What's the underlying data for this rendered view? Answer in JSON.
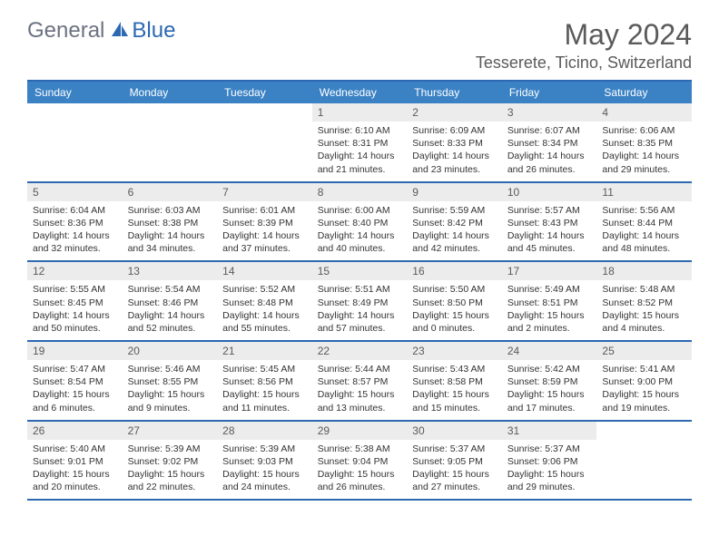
{
  "brand": {
    "part1": "General",
    "part2": "Blue"
  },
  "title": "May 2024",
  "location": "Tesserete, Ticino, Switzerland",
  "colors": {
    "header_bg": "#3b82c4",
    "border": "#2d68b2",
    "daynum_bg": "#ececec",
    "text_gray": "#5a5a5a"
  },
  "day_names": [
    "Sunday",
    "Monday",
    "Tuesday",
    "Wednesday",
    "Thursday",
    "Friday",
    "Saturday"
  ],
  "weeks": [
    [
      {
        "blank": true
      },
      {
        "blank": true
      },
      {
        "blank": true
      },
      {
        "n": "1",
        "sr": "6:10 AM",
        "ss": "8:31 PM",
        "dl": "14 hours and 21 minutes."
      },
      {
        "n": "2",
        "sr": "6:09 AM",
        "ss": "8:33 PM",
        "dl": "14 hours and 23 minutes."
      },
      {
        "n": "3",
        "sr": "6:07 AM",
        "ss": "8:34 PM",
        "dl": "14 hours and 26 minutes."
      },
      {
        "n": "4",
        "sr": "6:06 AM",
        "ss": "8:35 PM",
        "dl": "14 hours and 29 minutes."
      }
    ],
    [
      {
        "n": "5",
        "sr": "6:04 AM",
        "ss": "8:36 PM",
        "dl": "14 hours and 32 minutes."
      },
      {
        "n": "6",
        "sr": "6:03 AM",
        "ss": "8:38 PM",
        "dl": "14 hours and 34 minutes."
      },
      {
        "n": "7",
        "sr": "6:01 AM",
        "ss": "8:39 PM",
        "dl": "14 hours and 37 minutes."
      },
      {
        "n": "8",
        "sr": "6:00 AM",
        "ss": "8:40 PM",
        "dl": "14 hours and 40 minutes."
      },
      {
        "n": "9",
        "sr": "5:59 AM",
        "ss": "8:42 PM",
        "dl": "14 hours and 42 minutes."
      },
      {
        "n": "10",
        "sr": "5:57 AM",
        "ss": "8:43 PM",
        "dl": "14 hours and 45 minutes."
      },
      {
        "n": "11",
        "sr": "5:56 AM",
        "ss": "8:44 PM",
        "dl": "14 hours and 48 minutes."
      }
    ],
    [
      {
        "n": "12",
        "sr": "5:55 AM",
        "ss": "8:45 PM",
        "dl": "14 hours and 50 minutes."
      },
      {
        "n": "13",
        "sr": "5:54 AM",
        "ss": "8:46 PM",
        "dl": "14 hours and 52 minutes."
      },
      {
        "n": "14",
        "sr": "5:52 AM",
        "ss": "8:48 PM",
        "dl": "14 hours and 55 minutes."
      },
      {
        "n": "15",
        "sr": "5:51 AM",
        "ss": "8:49 PM",
        "dl": "14 hours and 57 minutes."
      },
      {
        "n": "16",
        "sr": "5:50 AM",
        "ss": "8:50 PM",
        "dl": "15 hours and 0 minutes."
      },
      {
        "n": "17",
        "sr": "5:49 AM",
        "ss": "8:51 PM",
        "dl": "15 hours and 2 minutes."
      },
      {
        "n": "18",
        "sr": "5:48 AM",
        "ss": "8:52 PM",
        "dl": "15 hours and 4 minutes."
      }
    ],
    [
      {
        "n": "19",
        "sr": "5:47 AM",
        "ss": "8:54 PM",
        "dl": "15 hours and 6 minutes."
      },
      {
        "n": "20",
        "sr": "5:46 AM",
        "ss": "8:55 PM",
        "dl": "15 hours and 9 minutes."
      },
      {
        "n": "21",
        "sr": "5:45 AM",
        "ss": "8:56 PM",
        "dl": "15 hours and 11 minutes."
      },
      {
        "n": "22",
        "sr": "5:44 AM",
        "ss": "8:57 PM",
        "dl": "15 hours and 13 minutes."
      },
      {
        "n": "23",
        "sr": "5:43 AM",
        "ss": "8:58 PM",
        "dl": "15 hours and 15 minutes."
      },
      {
        "n": "24",
        "sr": "5:42 AM",
        "ss": "8:59 PM",
        "dl": "15 hours and 17 minutes."
      },
      {
        "n": "25",
        "sr": "5:41 AM",
        "ss": "9:00 PM",
        "dl": "15 hours and 19 minutes."
      }
    ],
    [
      {
        "n": "26",
        "sr": "5:40 AM",
        "ss": "9:01 PM",
        "dl": "15 hours and 20 minutes."
      },
      {
        "n": "27",
        "sr": "5:39 AM",
        "ss": "9:02 PM",
        "dl": "15 hours and 22 minutes."
      },
      {
        "n": "28",
        "sr": "5:39 AM",
        "ss": "9:03 PM",
        "dl": "15 hours and 24 minutes."
      },
      {
        "n": "29",
        "sr": "5:38 AM",
        "ss": "9:04 PM",
        "dl": "15 hours and 26 minutes."
      },
      {
        "n": "30",
        "sr": "5:37 AM",
        "ss": "9:05 PM",
        "dl": "15 hours and 27 minutes."
      },
      {
        "n": "31",
        "sr": "5:37 AM",
        "ss": "9:06 PM",
        "dl": "15 hours and 29 minutes."
      },
      {
        "blank": true
      }
    ]
  ],
  "labels": {
    "sunrise": "Sunrise: ",
    "sunset": "Sunset: ",
    "daylight": "Daylight: "
  }
}
